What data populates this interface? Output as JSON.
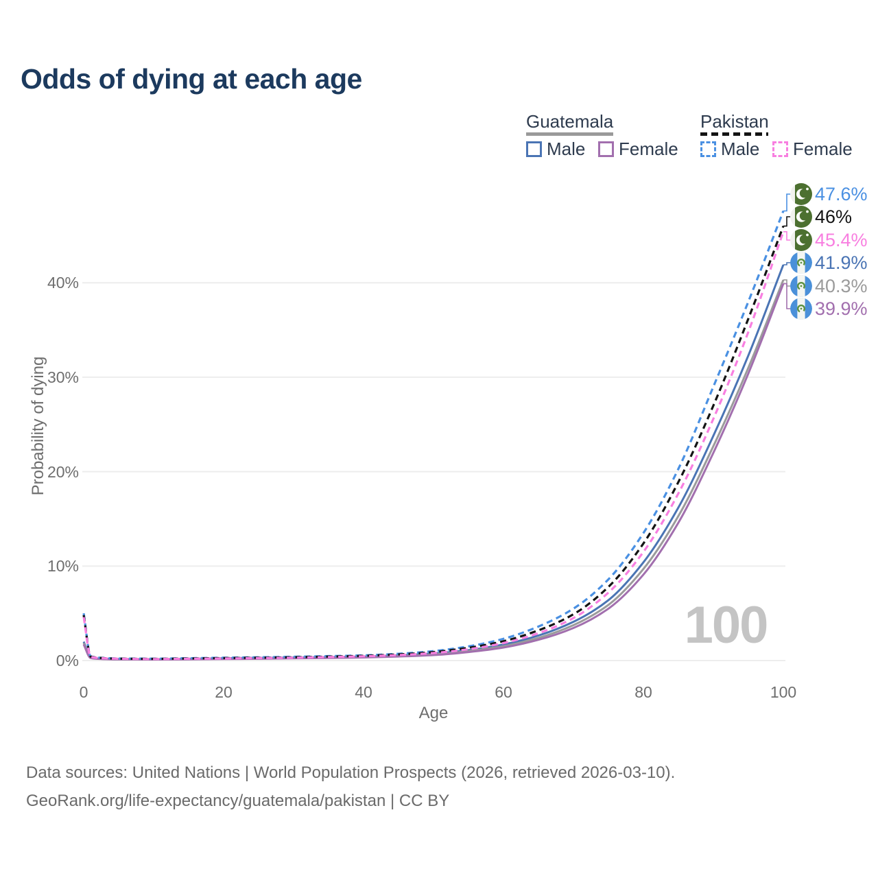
{
  "title": "Odds of dying at each age",
  "colors": {
    "title_text": "#1c3a5e",
    "axis_text": "#6e6e6e",
    "grid_line": "#ededed",
    "watermark_text": "#c4c4c4",
    "footer_text": "#6a6a6a"
  },
  "legend": {
    "groups": [
      {
        "name": "Guatemala",
        "line_style": "solid",
        "underline_color": "#9a9a9a",
        "items": [
          {
            "label": "Male",
            "color": "#4a74b4"
          },
          {
            "label": "Female",
            "color": "#a26fae"
          }
        ]
      },
      {
        "name": "Pakistan",
        "line_style": "dashed",
        "underline_color": "#141414",
        "items": [
          {
            "label": "Male",
            "color": "#4a90e2"
          },
          {
            "label": "Female",
            "color": "#f87fe0"
          }
        ]
      }
    ]
  },
  "chart_data": {
    "type": "line",
    "title": "Odds of dying at each age",
    "xlabel": "Age",
    "ylabel": "Probability of dying",
    "xlim": [
      0,
      100
    ],
    "ylim": [
      0,
      50
    ],
    "x_tick_labels": [
      "0",
      "20",
      "40",
      "60",
      "80",
      "100"
    ],
    "y_tick_labels": [
      "0%",
      "10%",
      "20%",
      "30%",
      "40%"
    ],
    "grid": "horizontal",
    "legend_position": "top-right",
    "watermark": "100",
    "x": [
      0,
      1,
      2,
      5,
      10,
      15,
      20,
      25,
      30,
      35,
      40,
      45,
      50,
      55,
      60,
      65,
      70,
      75,
      80,
      85,
      90,
      95,
      100
    ],
    "series": [
      {
        "name": "Pakistan Male",
        "country": "Pakistan",
        "flag": "pakistan",
        "sex": "Male",
        "color": "#4a90e2",
        "dashed": true,
        "end_label": "47.6%",
        "values": [
          5.0,
          0.45,
          0.32,
          0.22,
          0.2,
          0.25,
          0.3,
          0.35,
          0.4,
          0.47,
          0.55,
          0.72,
          1.0,
          1.5,
          2.3,
          3.6,
          5.5,
          8.6,
          13.5,
          20.3,
          29.0,
          38.0,
          47.6
        ]
      },
      {
        "name": "Pakistan Both sexes",
        "country": "Pakistan",
        "flag": "pakistan",
        "sex": "Both",
        "color": "#141414",
        "dashed": true,
        "end_label": "46%",
        "values": [
          4.8,
          0.42,
          0.3,
          0.2,
          0.18,
          0.22,
          0.26,
          0.3,
          0.35,
          0.42,
          0.5,
          0.65,
          0.9,
          1.35,
          2.05,
          3.2,
          4.9,
          7.8,
          12.4,
          18.9,
          27.0,
          36.2,
          46.0
        ]
      },
      {
        "name": "Pakistan Female",
        "country": "Pakistan",
        "flag": "pakistan",
        "sex": "Female",
        "color": "#f87fe0",
        "dashed": true,
        "end_label": "45.4%",
        "values": [
          4.6,
          0.4,
          0.28,
          0.19,
          0.16,
          0.19,
          0.22,
          0.26,
          0.3,
          0.37,
          0.45,
          0.58,
          0.8,
          1.2,
          1.85,
          2.9,
          4.5,
          7.2,
          11.5,
          17.7,
          25.6,
          34.8,
          45.4
        ]
      },
      {
        "name": "Guatemala Male",
        "country": "Guatemala",
        "flag": "guatemala",
        "sex": "Male",
        "color": "#4a74b4",
        "dashed": false,
        "end_label": "41.9%",
        "values": [
          2.0,
          0.3,
          0.22,
          0.15,
          0.14,
          0.19,
          0.25,
          0.29,
          0.33,
          0.37,
          0.42,
          0.55,
          0.75,
          1.1,
          1.7,
          2.65,
          4.1,
          6.4,
          10.4,
          16.2,
          23.8,
          32.3,
          41.9
        ]
      },
      {
        "name": "Guatemala Both sexes",
        "country": "Guatemala",
        "flag": "guatemala",
        "sex": "Both",
        "color": "#9b9b9b",
        "dashed": false,
        "end_label": "40.3%",
        "values": [
          1.85,
          0.28,
          0.2,
          0.13,
          0.12,
          0.16,
          0.2,
          0.24,
          0.28,
          0.32,
          0.37,
          0.48,
          0.65,
          1.0,
          1.52,
          2.4,
          3.75,
          5.9,
          9.7,
          15.3,
          22.7,
          31.0,
          40.3
        ]
      },
      {
        "name": "Guatemala Female",
        "country": "Guatemala",
        "flag": "guatemala",
        "sex": "Female",
        "color": "#a26fae",
        "dashed": false,
        "end_label": "39.9%",
        "values": [
          1.7,
          0.26,
          0.18,
          0.12,
          0.11,
          0.13,
          0.16,
          0.19,
          0.23,
          0.27,
          0.33,
          0.43,
          0.58,
          0.9,
          1.38,
          2.2,
          3.45,
          5.5,
          9.1,
          14.6,
          22.0,
          30.4,
          39.9
        ]
      }
    ]
  },
  "footer": {
    "line1": "Data sources: United Nations | World Population Prospects (2026, retrieved 2026-03-10).",
    "line2": "GeoRank.org/life-expectancy/guatemala/pakistan | CC BY"
  }
}
